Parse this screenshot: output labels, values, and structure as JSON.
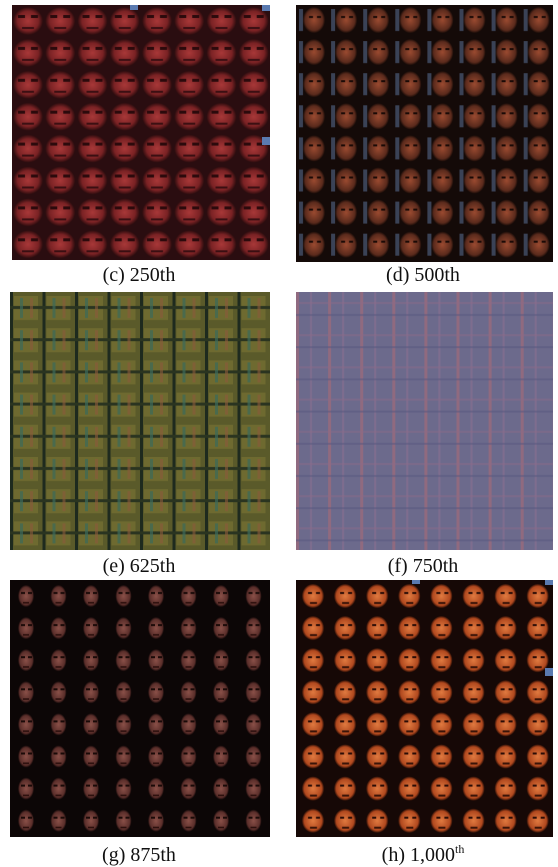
{
  "panels": [
    {
      "caption": "(c) 250th"
    },
    {
      "caption": "(d) 500th"
    },
    {
      "caption": "(e) 625th"
    },
    {
      "caption": "(f) 750th"
    },
    {
      "caption": "(g) 875th"
    },
    {
      "caption": "(h) 1,000",
      "superscript": "th"
    }
  ]
}
